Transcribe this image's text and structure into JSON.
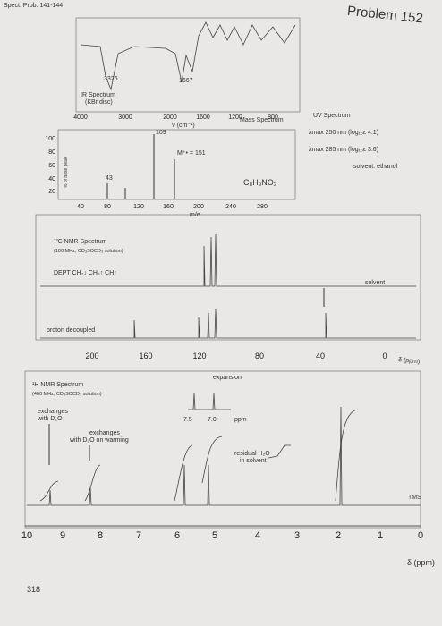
{
  "header": {
    "note": "Spect. Prob. 141-144",
    "title": "Problem 152"
  },
  "ir": {
    "title": "IR Spectrum",
    "subtitle": "(KBr disc)",
    "xticks": [
      "4000",
      "3000",
      "2000",
      "1600",
      "1200",
      "800"
    ],
    "xlabel": "ν (cm⁻¹)",
    "peaks": [
      "3326",
      "1667"
    ]
  },
  "mass": {
    "title": "Mass Spectrum",
    "yticks": [
      "100",
      "80",
      "60",
      "40",
      "20"
    ],
    "ylabel": "% of base peak",
    "xticks": [
      "40",
      "80",
      "120",
      "160",
      "200",
      "240",
      "280"
    ],
    "xlabel": "m/e",
    "peaks": [
      "109",
      "M⁺• = 151",
      "43"
    ],
    "formula": "C₈H₉NO₂"
  },
  "uv": {
    "title": "UV Spectrum",
    "lines": [
      "λmax 250 nm (log₁₀ε 4.1)",
      "λmax 285 nm (log₁₀ε 3.6)"
    ],
    "solvent": "solvent: ethanol"
  },
  "c13": {
    "title": "¹³C NMR Spectrum",
    "subtitle": "(100 MHz, CD₃SOCD₃ solution)",
    "dept": "DEPT  CH₂↓  CH₃↑  CH↑",
    "solvent": "solvent",
    "decoupled": "proton decoupled",
    "xticks": [
      "200",
      "160",
      "120",
      "80",
      "40",
      "0"
    ],
    "xlabel": "δ (ppm)"
  },
  "h1": {
    "title": "¹H NMR Spectrum",
    "subtitle": "(400 MHz, CD₃SOCD₃ solution)",
    "exchange1": [
      "exchanges",
      "with D₂O"
    ],
    "exchange2": [
      "exchanges",
      "with D₂O on warming"
    ],
    "expansion": "expansion",
    "expansion_ticks": [
      "7.5",
      "7.0",
      "ppm"
    ],
    "water": [
      "residual H₂O",
      "in solvent"
    ],
    "tms": "TMS",
    "xticks": [
      "10",
      "9",
      "8",
      "7",
      "6",
      "5",
      "4",
      "3",
      "2",
      "1",
      "0"
    ],
    "xlabel": "δ (ppm)"
  },
  "footer": {
    "page": "318"
  }
}
